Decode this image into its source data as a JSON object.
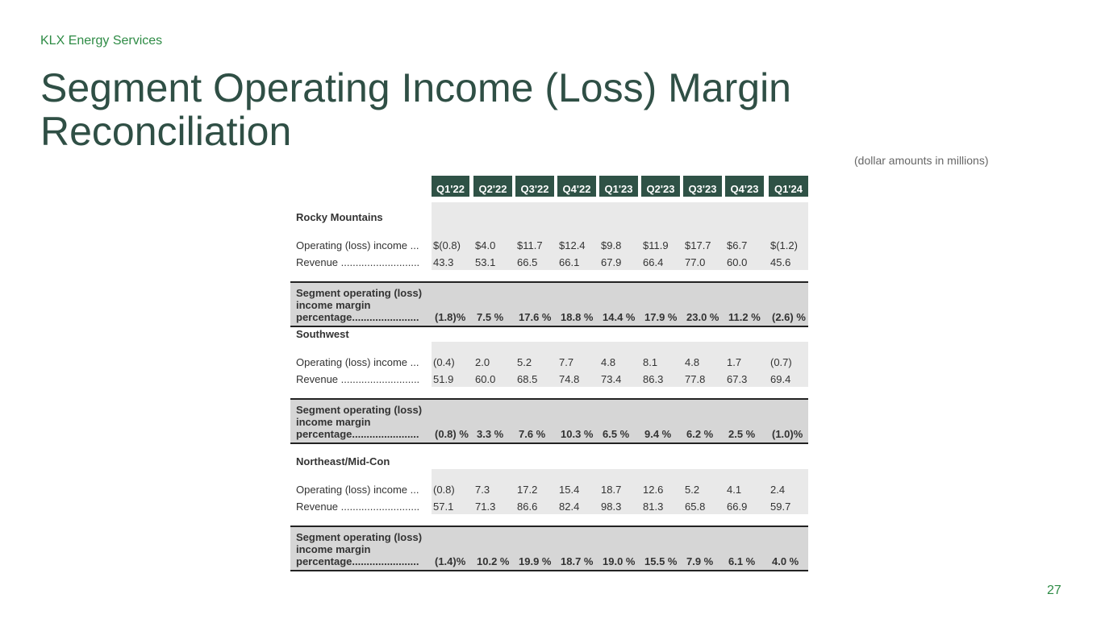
{
  "header": {
    "company": "KLX Energy Services",
    "title": "Segment Operating Income (Loss) Margin Reconciliation",
    "units_note": "(dollar amounts in millions)",
    "page_number": "27"
  },
  "table": {
    "columns": [
      "Q1'22",
      "Q2'22",
      "Q3'22",
      "Q4'22",
      "Q1'23",
      "Q2'23",
      "Q3'23",
      "Q4'23",
      "Q1'24"
    ],
    "segments": [
      {
        "name": "Rocky Mountains",
        "op_label": "Operating (loss) income ...",
        "op_values": [
          "$(0.8)",
          "$4.0",
          "$11.7",
          "$12.4",
          "$9.8",
          "$11.9",
          "$17.7",
          "$6.7",
          "$(1.2)"
        ],
        "rev_label": "Revenue ...........................",
        "rev_values": [
          "43.3",
          "53.1",
          "66.5",
          "66.1",
          "67.9",
          "66.4",
          "77.0",
          "60.0",
          "45.6"
        ],
        "margin_label": "Segment operating (loss) income margin percentage.......................",
        "margin_values": [
          "(1.8)%",
          "7.5 %",
          "17.6 %",
          "18.8 %",
          "14.4 %",
          "17.9 %",
          "23.0 %",
          "11.2 %",
          "(2.6) %"
        ]
      },
      {
        "name": "Southwest",
        "op_label": "Operating (loss) income ...",
        "op_values": [
          "(0.4)",
          "2.0",
          "5.2",
          "7.7",
          "4.8",
          "8.1",
          "4.8",
          "1.7",
          "(0.7)"
        ],
        "rev_label": "Revenue ...........................",
        "rev_values": [
          "51.9",
          "60.0",
          "68.5",
          "74.8",
          "73.4",
          "86.3",
          "77.8",
          "67.3",
          "69.4"
        ],
        "margin_label": "Segment operating (loss) income margin percentage.......................",
        "margin_values": [
          "(0.8) %",
          "3.3 %",
          "7.6 %",
          "10.3 %",
          "6.5 %",
          "9.4 %",
          "6.2 %",
          "2.5 %",
          "(1.0)%"
        ]
      },
      {
        "name": "Northeast/Mid-Con",
        "op_label": "Operating (loss) income ...",
        "op_values": [
          "(0.8)",
          "7.3",
          "17.2",
          "15.4",
          "18.7",
          "12.6",
          "5.2",
          "4.1",
          "2.4"
        ],
        "rev_label": "Revenue ...........................",
        "rev_values": [
          "57.1",
          "71.3",
          "86.6",
          "82.4",
          "98.3",
          "81.3",
          "65.8",
          "66.9",
          "59.7"
        ],
        "margin_label": "Segment operating (loss) income margin percentage.......................",
        "margin_values": [
          "(1.4)%",
          "10.2 %",
          "19.9 %",
          "18.7 %",
          "19.0 %",
          "15.5 %",
          "7.9 %",
          "6.1 %",
          "4.0 %"
        ]
      }
    ]
  }
}
